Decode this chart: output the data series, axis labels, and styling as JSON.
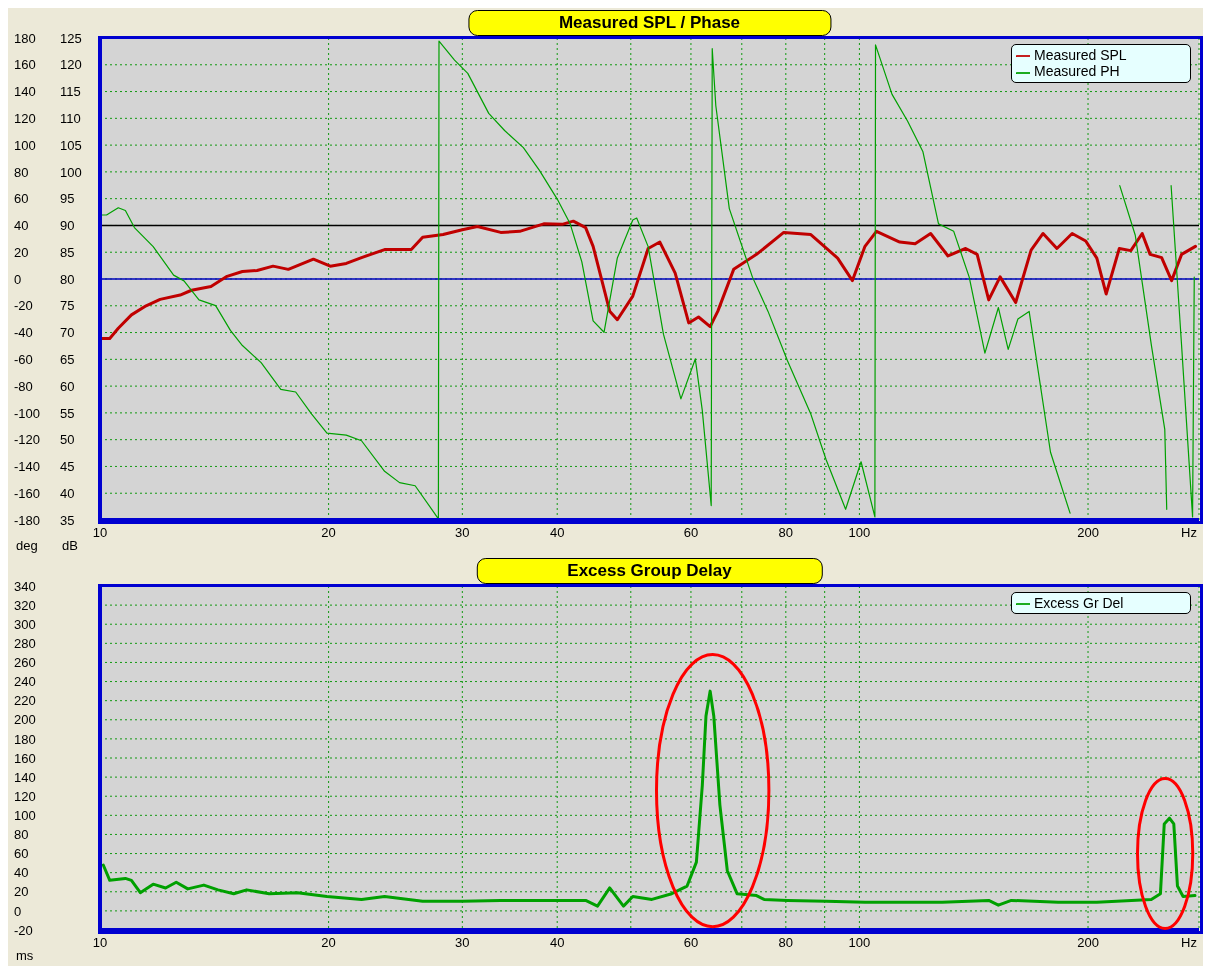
{
  "chart_data": [
    {
      "type": "line",
      "title": "Measured SPL / Phase",
      "xlabel": "Hz",
      "ylabel": "dB",
      "y2label": "deg",
      "log": "x",
      "grid": true,
      "legend": "top right",
      "marker": "none",
      "line_style": "solid",
      "xlim": [
        10,
        280
      ],
      "xticks": [
        10,
        20,
        30,
        40,
        {
          "value": 50,
          "label": null
        },
        60,
        {
          "value": 70,
          "label": null
        },
        80,
        {
          "value": 90,
          "label": null
        },
        100,
        200
      ],
      "ylim": [
        35,
        125
      ],
      "yticks": [
        35,
        40,
        45,
        50,
        55,
        60,
        65,
        70,
        75,
        80,
        85,
        90,
        95,
        100,
        105,
        110,
        115,
        120,
        125
      ],
      "y2lim": [
        -180,
        180
      ],
      "y2ticks": [
        -180,
        -160,
        -140,
        -120,
        -100,
        -80,
        -60,
        -40,
        -20,
        0,
        20,
        40,
        60,
        80,
        100,
        120,
        140,
        160,
        180
      ],
      "ref_lines": [
        {
          "axis": "y",
          "value": 90,
          "color": "#000000"
        },
        {
          "axis": "y2",
          "value": 0,
          "color": "#0000c0"
        }
      ],
      "series": [
        {
          "name": "Measured SPL",
          "color": "#c00000",
          "axis": "y",
          "x": [
            10,
            10.3,
            10.57,
            11.0,
            11.5,
            12.0,
            12.75,
            13.2,
            14.0,
            14.7,
            15.4,
            16.1,
            16.9,
            17.7,
            19.1,
            20.1,
            21.1,
            22.1,
            23.7,
            25.7,
            26.6,
            28.3,
            30.0,
            31.4,
            33.7,
            35.7,
            38.4,
            40.6,
            42.0,
            43.6,
            44.6,
            46.9,
            48.0,
            50.3,
            52.7,
            54.6,
            57.2,
            59.6,
            61.4,
            63.6,
            65.1,
            68.3,
            73.2,
            79.5,
            86.3,
            93.6,
            97.9,
            101.7,
            105.3,
            113.0,
            118.4,
            124.1,
            130.8,
            138.0,
            142.9,
            148.0,
            153.2,
            160.6,
            168.3,
            174.5,
            182.0,
            190.6,
            198.6,
            205.4,
            211.3,
            219.9,
            227.7,
            235.7,
            241.4,
            250.0,
            257.7,
            265.6,
            277.0
          ],
          "values": [
            68.9,
            68.9,
            70.8,
            73.3,
            75.0,
            76.2,
            77.0,
            77.9,
            78.6,
            80.5,
            81.4,
            81.6,
            82.4,
            81.8,
            83.7,
            82.4,
            82.9,
            84.0,
            85.5,
            85.5,
            87.8,
            88.3,
            89.2,
            89.8,
            88.7,
            88.9,
            90.3,
            90.2,
            90.8,
            89.6,
            86.1,
            74.0,
            72.4,
            76.8,
            85.7,
            86.9,
            81.1,
            71.8,
            72.9,
            71.1,
            74.0,
            81.8,
            84.6,
            88.7,
            88.3,
            83.9,
            79.7,
            86.1,
            88.9,
            86.9,
            86.6,
            88.5,
            84.3,
            85.7,
            84.6,
            76.1,
            80.4,
            75.6,
            85.4,
            88.5,
            85.7,
            88.5,
            87.1,
            83.9,
            77.2,
            85.7,
            85.3,
            88.5,
            84.6,
            84.0,
            79.7,
            84.6,
            86.1
          ]
        },
        {
          "name": "Measured PH",
          "color": "#00a000",
          "axis": "y2",
          "x": [
            10.0,
            10.2,
            10.57,
            10.8,
            11.1,
            11.75,
            12.5,
            12.9,
            13.5,
            14.2,
            14.85,
            15.4,
            16.3,
            17.3,
            18.1,
            19.0,
            19.9,
            21.1,
            22.1,
            23.7,
            24.8,
            26.0,
            27.9,
            27.95,
            29.3,
            30.5,
            32.5,
            34.1,
            36.1,
            37.9,
            40.0,
            41.6,
            43.1,
            44.6,
            46.1,
            48.0,
            50.3,
            50.9,
            52.7,
            55.2,
            58.2,
            60.8,
            62.1,
            63.8,
            64.0,
            64.7,
            67.4,
            72.3,
            75.8,
            80.4,
            86.3,
            90.4,
            95.9,
            100.5,
            104.8,
            105.0,
            110.4,
            115.7,
            121.2,
            127.1,
            133.1,
            139.5,
            146.3,
            152.4,
            157.0,
            161.7,
            167.3,
            178.5,
            189.4,
            190.0,
            220.2,
            230.8,
            242.4,
            252.4,
            253.9,
            255.0,
            257.3,
            265.6,
            274.6,
            276.0
          ],
          "values": [
            47.8,
            47.8,
            53.2,
            51.2,
            38.4,
            24.2,
            2.9,
            -1.4,
            -15.6,
            -19.9,
            -38.4,
            -49.7,
            -62.5,
            -82.4,
            -84.4,
            -100.9,
            -115.1,
            -116.6,
            -120.8,
            -143.6,
            -152.1,
            -154.4,
            -179.1,
            177.7,
            163.5,
            153.6,
            123.7,
            110.9,
            98.1,
            81.1,
            59.7,
            41.2,
            12.8,
            -31.3,
            -39.8,
            15.7,
            44.1,
            45.5,
            24.2,
            -41.2,
            -89.5,
            -59.7,
            -98.1,
            -169.2,
            172.0,
            129.4,
            52.6,
            1.4,
            -24.2,
            -61.1,
            -100.9,
            -135.0,
            -172.0,
            -136.5,
            -177.7,
            174.9,
            137.9,
            118.0,
            95.3,
            41.2,
            35.6,
            1.4,
            -55.4,
            -21.3,
            -52.6,
            -29.9,
            -24.2,
            -129.4,
            -174.9,
            null,
            69.7,
            32.7,
            -49.7,
            -112.3,
            -172.0,
            null,
            69.7,
            -49.7,
            -177.7,
            1.4
          ]
        }
      ]
    },
    {
      "type": "line",
      "title": "Excess Group Delay",
      "xlabel": "Hz",
      "ylabel": "ms",
      "log": "x",
      "grid": true,
      "legend": "top right",
      "marker": "none",
      "line_style": "solid",
      "xlim": [
        10,
        280
      ],
      "xticks": [
        10,
        20,
        30,
        40,
        {
          "value": 50,
          "label": null
        },
        60,
        {
          "value": 70,
          "label": null
        },
        80,
        {
          "value": 90,
          "label": null
        },
        100,
        200
      ],
      "ylim": [
        -20,
        340
      ],
      "yticks": [
        -20,
        0,
        20,
        40,
        60,
        80,
        100,
        120,
        140,
        160,
        180,
        200,
        220,
        240,
        260,
        280,
        300,
        320,
        340
      ],
      "series": [
        {
          "name": "Excess Gr Del",
          "color": "#00a000",
          "x": [
            10.1,
            10.3,
            10.8,
            11.0,
            11.3,
            11.75,
            12.2,
            12.6,
            13.05,
            13.7,
            14.3,
            15.0,
            15.6,
            16.7,
            18.2,
            19.9,
            22.1,
            23.7,
            26.6,
            30.0,
            33.7,
            37.9,
            43.6,
            45.2,
            46.9,
            48.9,
            50.3,
            53.3,
            56.6,
            59.3,
            61.0,
            62.1,
            62.8,
            63.6,
            64.3,
            65.5,
            67.0,
            69.0,
            73.2,
            74.9,
            80.4,
            90.4,
            101.7,
            128.5,
            148.0,
            152.4,
            158.5,
            182.7,
            205.4,
            242.3,
            249.1,
            252.0,
            256.0,
            259.4,
            262.3,
            266.8,
            276.6
          ],
          "values": [
            48,
            32,
            34,
            32,
            19,
            28,
            24,
            30,
            23,
            27,
            22,
            18,
            22,
            18,
            19,
            15,
            12,
            15,
            10,
            10,
            11,
            11,
            11,
            5,
            24,
            5,
            15,
            12,
            18,
            26,
            51,
            131,
            204,
            230,
            204,
            111,
            42,
            18,
            16,
            12,
            11,
            10,
            9,
            9,
            11,
            6,
            11,
            9,
            9,
            12,
            18,
            91,
            97,
            91,
            26,
            15,
            16
          ]
        }
      ]
    }
  ]
}
